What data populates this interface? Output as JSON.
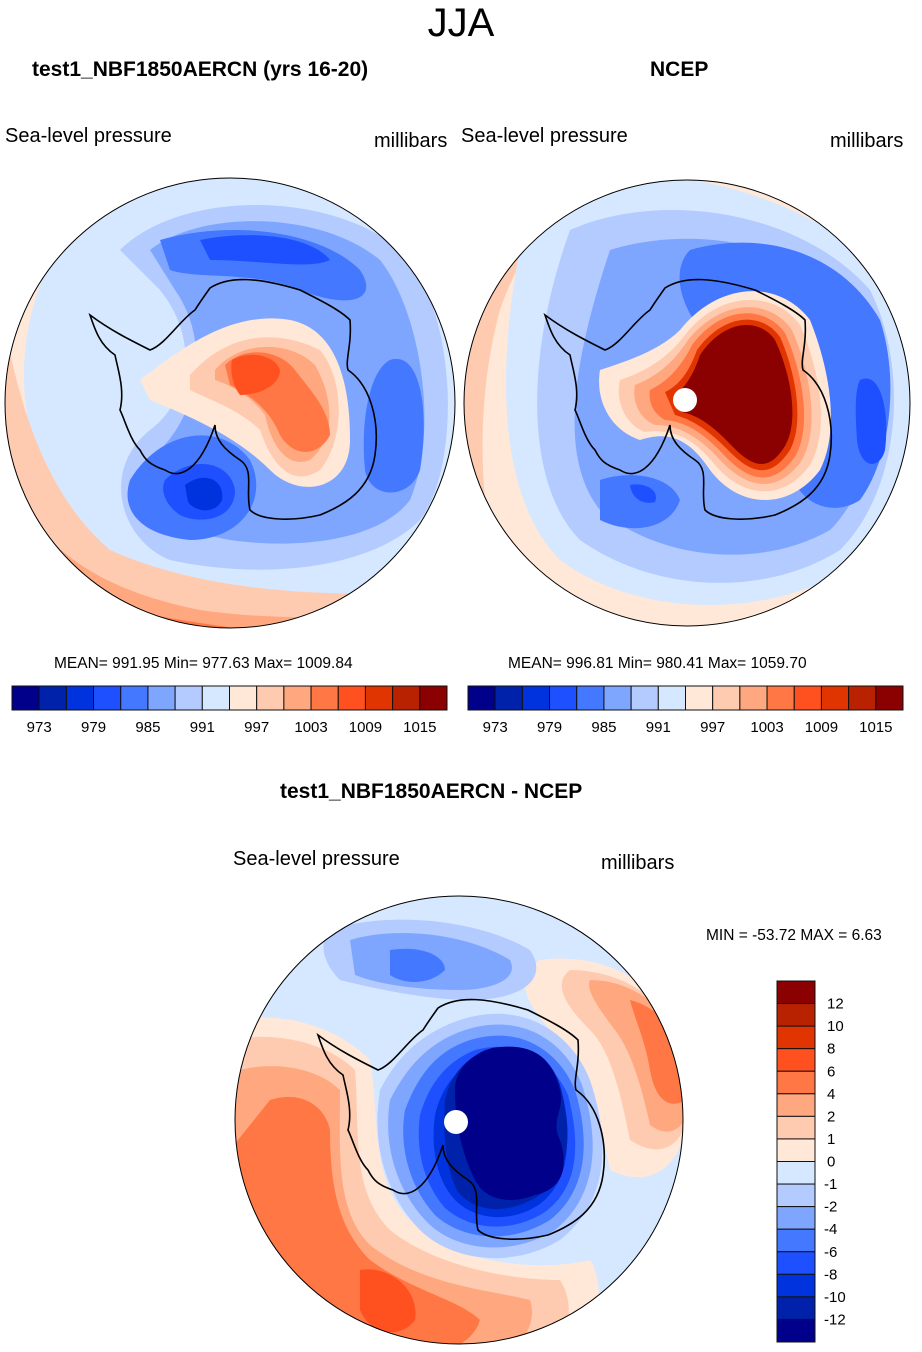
{
  "figure": {
    "title": "JJA",
    "colors": [
      "#00008b",
      "#0022aa",
      "#0033dd",
      "#1e50ff",
      "#4478ff",
      "#7fa6ff",
      "#b4cbff",
      "#d6e8ff",
      "#ffe8d8",
      "#ffcbb0",
      "#ffa880",
      "#ff7744",
      "#ff5020",
      "#e03500",
      "#b82200",
      "#8b0000"
    ]
  },
  "chart_data": [
    {
      "type": "heatmap",
      "projection": "south-polar-stereographic",
      "title": "test1_NBF1850AERCN (yrs 16-20)",
      "left_label": "Sea-level pressure",
      "right_label": "millibars",
      "stats": {
        "mean": "991.95",
        "min": "977.63",
        "max": "1009.84"
      },
      "stats_text": "MEAN= 991.95  Min= 977.63  Max= 1009.84",
      "levels": [
        973,
        976,
        979,
        982,
        985,
        988,
        991,
        994,
        997,
        1000,
        1003,
        1006,
        1009,
        1012,
        1015
      ],
      "tick_labels": [
        "973",
        "979",
        "985",
        "991",
        "997",
        "1003",
        "1009",
        "1015"
      ],
      "colorbar_orientation": "horizontal",
      "features": "low-pressure belt (979-988) around Antarctica, high 1003-1012 over East Antarctic interior, deepest low ~979 in Ross/Amundsen Sea region, 994-1006 at outer ring"
    },
    {
      "type": "heatmap",
      "projection": "south-polar-stereographic",
      "title": "NCEP",
      "left_label": "Sea-level pressure",
      "right_label": "millibars",
      "stats": {
        "mean": "996.81",
        "min": "980.41",
        "max": "1059.70"
      },
      "stats_text": "MEAN= 996.81  Min= 980.41  Max= 1059.70",
      "levels": [
        973,
        976,
        979,
        982,
        985,
        988,
        991,
        994,
        997,
        1000,
        1003,
        1006,
        1009,
        1012,
        1015
      ],
      "tick_labels": [
        "973",
        "979",
        "985",
        "991",
        "997",
        "1003",
        "1009",
        "1015"
      ],
      "colorbar_orientation": "horizontal",
      "features": "very high (>1015) over Antarctic continent, 982-991 ring around it, white missing-data disk at pole"
    },
    {
      "type": "heatmap",
      "projection": "south-polar-stereographic",
      "title": "test1_NBF1850AERCN - NCEP",
      "left_label": "Sea-level pressure",
      "right_label": "millibars",
      "stats": {
        "min": "-53.72",
        "max": "6.63"
      },
      "stats_text": "MIN = -53.72 MAX =   6.63",
      "levels": [
        -12,
        -10,
        -8,
        -6,
        -4,
        -2,
        -1,
        0,
        1,
        2,
        4,
        6,
        8,
        10,
        12
      ],
      "tick_labels": [
        "12",
        "10",
        "8",
        "6",
        "4",
        "2",
        "1",
        "0",
        "-1",
        "-2",
        "-4",
        "-6",
        "-8",
        "-10",
        "-12"
      ],
      "colorbar_orientation": "vertical",
      "features": "strongly negative (<-12) over Antarctic continent, positive 2-8 over South Pacific/Atlantic sectors, negative -1 to -6 in Indian sector"
    }
  ]
}
